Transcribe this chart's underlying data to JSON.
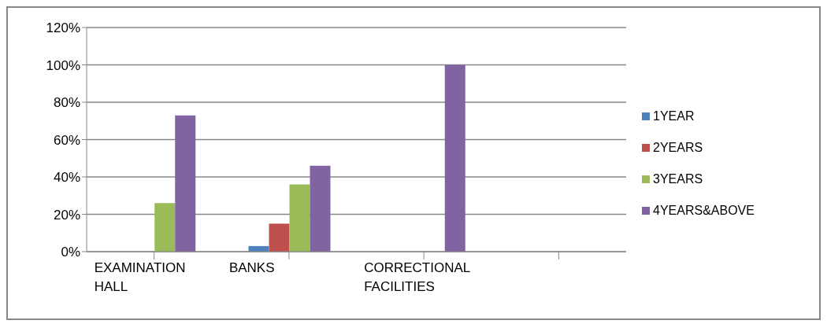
{
  "chart_data": {
    "type": "bar",
    "categories": [
      "EXAMINATION HALL",
      "BANKS",
      "CORRECTIONAL FACILITIES",
      null
    ],
    "series": [
      {
        "name": "1YEAR",
        "color": "#4f81bd",
        "values": [
          0,
          3,
          0,
          null
        ]
      },
      {
        "name": "2YEARS",
        "color": "#c0504d",
        "values": [
          0,
          15,
          0,
          null
        ]
      },
      {
        "name": "3YEARS",
        "color": "#9bbb59",
        "values": [
          26,
          36,
          0,
          null
        ]
      },
      {
        "name": "4YEARS&ABOVE",
        "color": "#8064a2",
        "values": [
          73,
          46,
          100,
          null
        ]
      }
    ],
    "ylim": [
      0,
      120
    ],
    "yticks": [
      {
        "value": 0,
        "label": "0%"
      },
      {
        "value": 20,
        "label": "20%"
      },
      {
        "value": 40,
        "label": "40%"
      },
      {
        "value": 60,
        "label": "60%"
      },
      {
        "value": 80,
        "label": "80%"
      },
      {
        "value": 100,
        "label": "100%"
      },
      {
        "value": 120,
        "label": "120%"
      }
    ],
    "grid": "y",
    "legend": "right"
  }
}
